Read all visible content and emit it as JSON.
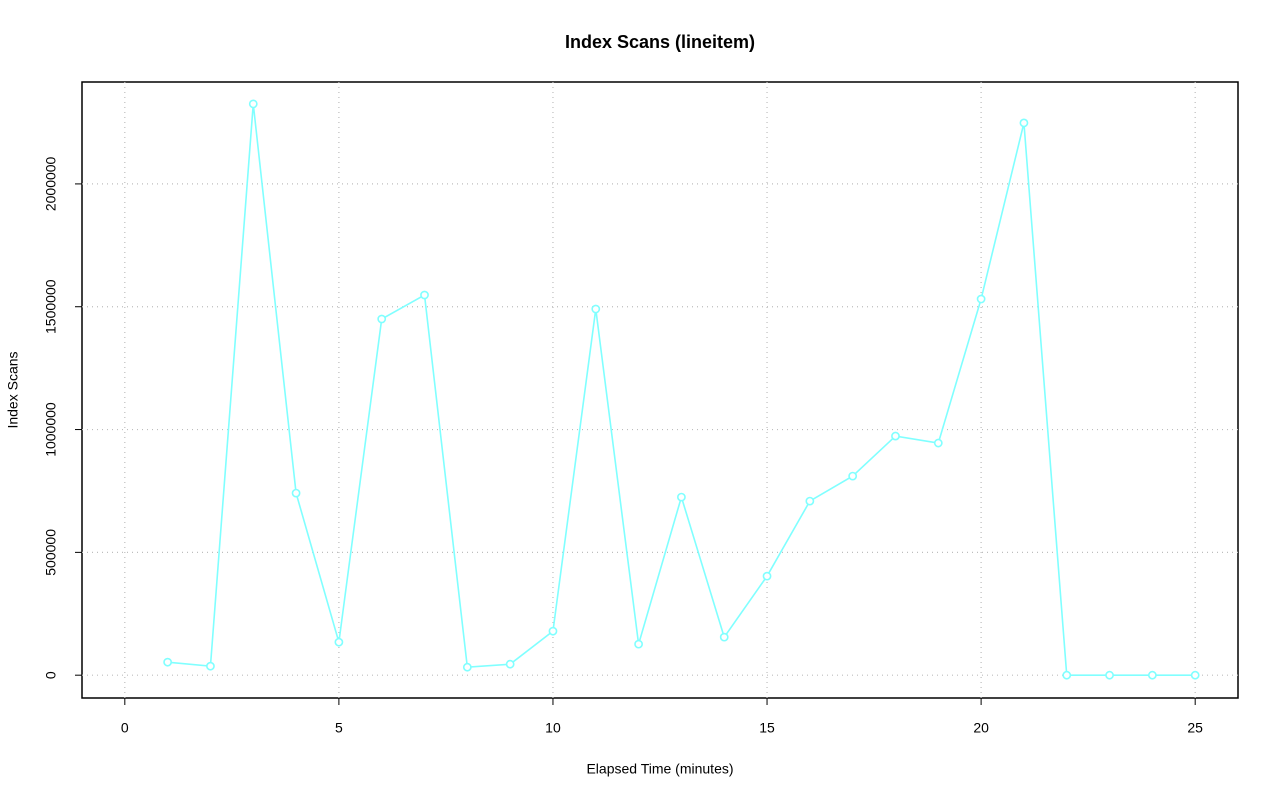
{
  "chart_data": {
    "type": "line",
    "title": "Index Scans (lineitem)",
    "x_label": "Elapsed Time (minutes)",
    "y_label": "Index Scans",
    "x": [
      1,
      2,
      3,
      4,
      5,
      6,
      7,
      8,
      9,
      10,
      11,
      12,
      13,
      14,
      15,
      16,
      17,
      18,
      19,
      20,
      21,
      22,
      23,
      24,
      25
    ],
    "values": [
      53000,
      36700,
      2325700,
      741300,
      134400,
      1450000,
      1547700,
      32600,
      44800,
      179200,
      1490700,
      126300,
      725000,
      154800,
      403200,
      708700,
      810500,
      973400,
      945000,
      1531400,
      2248300,
      0,
      0,
      0,
      0
    ],
    "color": "#80ffff",
    "xlim": [
      -1,
      26
    ],
    "xticks": [
      0,
      5,
      10,
      15,
      20,
      25
    ],
    "ylim": [
      -92880,
      2414880
    ],
    "yticks": [
      0,
      500000,
      1000000,
      1500000,
      2000000
    ],
    "grid": true
  }
}
